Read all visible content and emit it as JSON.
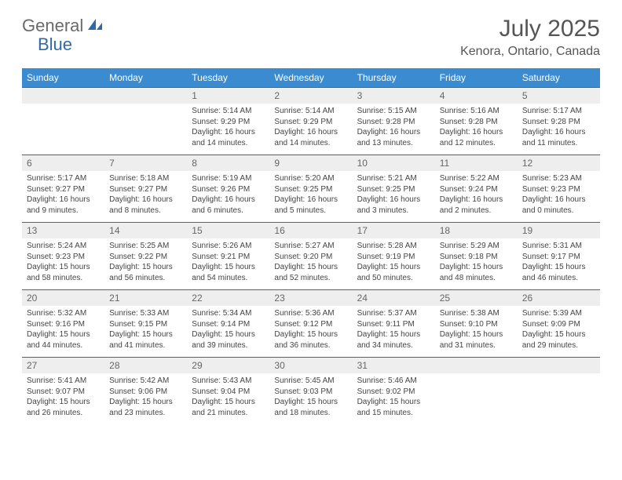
{
  "logo": {
    "part1": "General",
    "part2": "Blue",
    "part1_color": "#6a6a6a",
    "part2_color": "#2f6aa8"
  },
  "title": "July 2025",
  "location": "Kenora, Ontario, Canada",
  "header_bg": "#3b8bd0",
  "header_fg": "#ffffff",
  "daynum_bg": "#eeeeee",
  "border_color": "#2f6aa8",
  "weekdays": [
    "Sunday",
    "Monday",
    "Tuesday",
    "Wednesday",
    "Thursday",
    "Friday",
    "Saturday"
  ],
  "weeks": [
    [
      null,
      null,
      {
        "n": "1",
        "sr": "5:14 AM",
        "ss": "9:29 PM",
        "dl": "16 hours and 14 minutes."
      },
      {
        "n": "2",
        "sr": "5:14 AM",
        "ss": "9:29 PM",
        "dl": "16 hours and 14 minutes."
      },
      {
        "n": "3",
        "sr": "5:15 AM",
        "ss": "9:28 PM",
        "dl": "16 hours and 13 minutes."
      },
      {
        "n": "4",
        "sr": "5:16 AM",
        "ss": "9:28 PM",
        "dl": "16 hours and 12 minutes."
      },
      {
        "n": "5",
        "sr": "5:17 AM",
        "ss": "9:28 PM",
        "dl": "16 hours and 11 minutes."
      }
    ],
    [
      {
        "n": "6",
        "sr": "5:17 AM",
        "ss": "9:27 PM",
        "dl": "16 hours and 9 minutes."
      },
      {
        "n": "7",
        "sr": "5:18 AM",
        "ss": "9:27 PM",
        "dl": "16 hours and 8 minutes."
      },
      {
        "n": "8",
        "sr": "5:19 AM",
        "ss": "9:26 PM",
        "dl": "16 hours and 6 minutes."
      },
      {
        "n": "9",
        "sr": "5:20 AM",
        "ss": "9:25 PM",
        "dl": "16 hours and 5 minutes."
      },
      {
        "n": "10",
        "sr": "5:21 AM",
        "ss": "9:25 PM",
        "dl": "16 hours and 3 minutes."
      },
      {
        "n": "11",
        "sr": "5:22 AM",
        "ss": "9:24 PM",
        "dl": "16 hours and 2 minutes."
      },
      {
        "n": "12",
        "sr": "5:23 AM",
        "ss": "9:23 PM",
        "dl": "16 hours and 0 minutes."
      }
    ],
    [
      {
        "n": "13",
        "sr": "5:24 AM",
        "ss": "9:23 PM",
        "dl": "15 hours and 58 minutes."
      },
      {
        "n": "14",
        "sr": "5:25 AM",
        "ss": "9:22 PM",
        "dl": "15 hours and 56 minutes."
      },
      {
        "n": "15",
        "sr": "5:26 AM",
        "ss": "9:21 PM",
        "dl": "15 hours and 54 minutes."
      },
      {
        "n": "16",
        "sr": "5:27 AM",
        "ss": "9:20 PM",
        "dl": "15 hours and 52 minutes."
      },
      {
        "n": "17",
        "sr": "5:28 AM",
        "ss": "9:19 PM",
        "dl": "15 hours and 50 minutes."
      },
      {
        "n": "18",
        "sr": "5:29 AM",
        "ss": "9:18 PM",
        "dl": "15 hours and 48 minutes."
      },
      {
        "n": "19",
        "sr": "5:31 AM",
        "ss": "9:17 PM",
        "dl": "15 hours and 46 minutes."
      }
    ],
    [
      {
        "n": "20",
        "sr": "5:32 AM",
        "ss": "9:16 PM",
        "dl": "15 hours and 44 minutes."
      },
      {
        "n": "21",
        "sr": "5:33 AM",
        "ss": "9:15 PM",
        "dl": "15 hours and 41 minutes."
      },
      {
        "n": "22",
        "sr": "5:34 AM",
        "ss": "9:14 PM",
        "dl": "15 hours and 39 minutes."
      },
      {
        "n": "23",
        "sr": "5:36 AM",
        "ss": "9:12 PM",
        "dl": "15 hours and 36 minutes."
      },
      {
        "n": "24",
        "sr": "5:37 AM",
        "ss": "9:11 PM",
        "dl": "15 hours and 34 minutes."
      },
      {
        "n": "25",
        "sr": "5:38 AM",
        "ss": "9:10 PM",
        "dl": "15 hours and 31 minutes."
      },
      {
        "n": "26",
        "sr": "5:39 AM",
        "ss": "9:09 PM",
        "dl": "15 hours and 29 minutes."
      }
    ],
    [
      {
        "n": "27",
        "sr": "5:41 AM",
        "ss": "9:07 PM",
        "dl": "15 hours and 26 minutes."
      },
      {
        "n": "28",
        "sr": "5:42 AM",
        "ss": "9:06 PM",
        "dl": "15 hours and 23 minutes."
      },
      {
        "n": "29",
        "sr": "5:43 AM",
        "ss": "9:04 PM",
        "dl": "15 hours and 21 minutes."
      },
      {
        "n": "30",
        "sr": "5:45 AM",
        "ss": "9:03 PM",
        "dl": "15 hours and 18 minutes."
      },
      {
        "n": "31",
        "sr": "5:46 AM",
        "ss": "9:02 PM",
        "dl": "15 hours and 15 minutes."
      },
      null,
      null
    ]
  ],
  "labels": {
    "sunrise": "Sunrise:",
    "sunset": "Sunset:",
    "daylight": "Daylight:"
  }
}
